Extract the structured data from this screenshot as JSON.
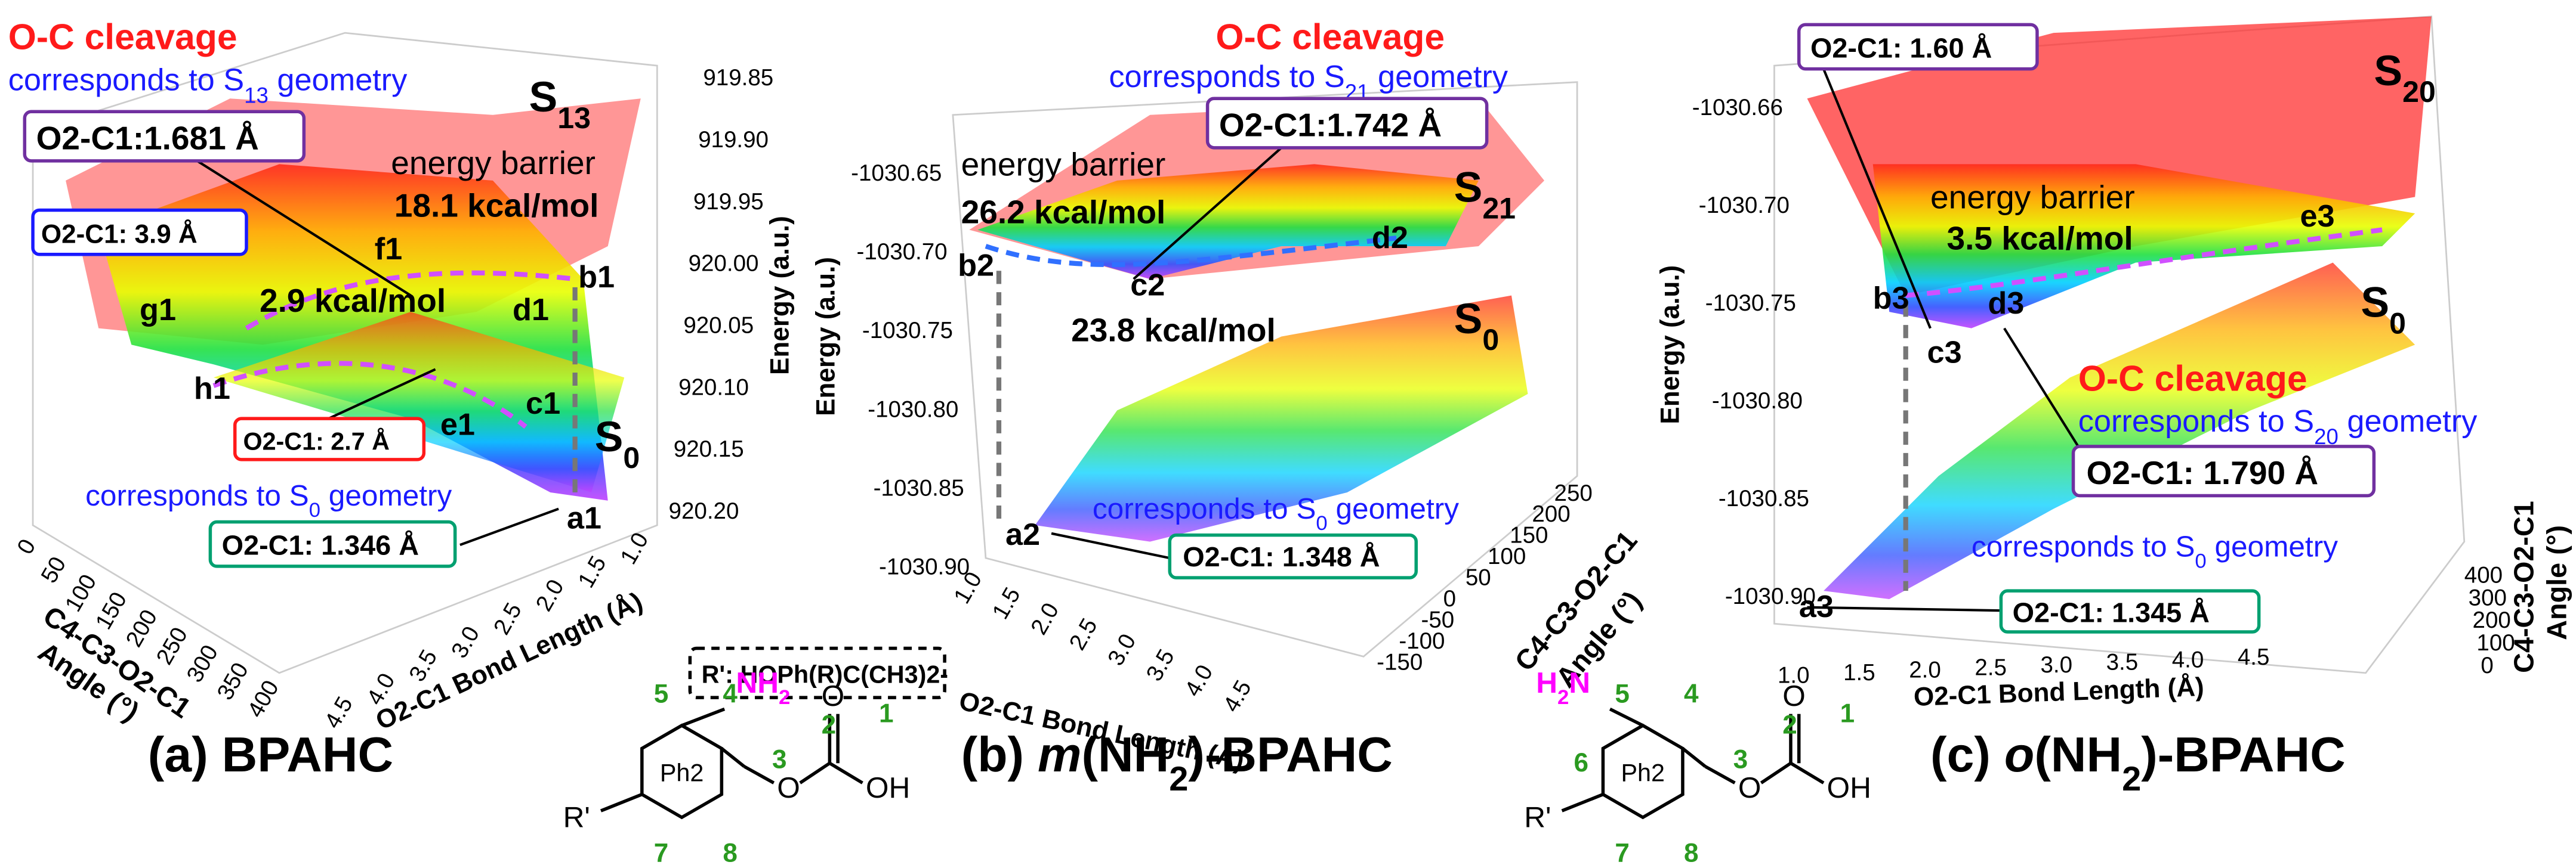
{
  "panels": [
    {
      "caption": "(a)  BPAHC",
      "cleavage": "O-C cleavage",
      "top_geometry": {
        "prefix": "corresponds to S",
        "sub": "13",
        "suffix": " geometry"
      },
      "state_upper": {
        "base": "S",
        "sub": "13"
      },
      "state_lower": {
        "base": "S",
        "sub": "0"
      },
      "bottom_geometry": {
        "prefix": "corresponds to S",
        "sub": "0",
        "suffix": " geometry"
      },
      "barrier_label": "energy barrier",
      "barriers": [
        "18.1 kcal/mol",
        "2.9 kcal/mol"
      ],
      "points": [
        "a1",
        "b1",
        "c1",
        "d1",
        "e1",
        "f1",
        "g1",
        "h1"
      ],
      "boxes": [
        "O2-C1:1.681 Å",
        "O2-C1: 3.9 Å",
        "O2-C1: 2.7 Å",
        "O2-C1: 1.346 Å"
      ],
      "energy_axis": {
        "label": "Energy (a.u.)",
        "ticks": [
          "919.85",
          "919.90",
          "919.95",
          "920.00",
          "920.05",
          "920.10",
          "920.15",
          "920.20"
        ]
      },
      "bond_axis": {
        "label": "O2-C1 Bond Length (Å)",
        "ticks": [
          "1.0",
          "1.5",
          "2.0",
          "2.5",
          "3.0",
          "3.5",
          "4.0",
          "4.5"
        ]
      },
      "angle_axis": {
        "label": [
          "C4-C3-O2-C1",
          "Angle (°)"
        ],
        "ticks": [
          "0",
          "50",
          "100",
          "150",
          "200",
          "250",
          "300",
          "350",
          "400"
        ]
      }
    },
    {
      "caption": {
        "prefix": "(b) ",
        "italic": "m",
        "middle": "(NH",
        "sub": "2",
        "suffix": ")-BPAHC"
      },
      "cleavage": "O-C cleavage",
      "top_geometry": {
        "prefix": "corresponds to S",
        "sub": "21",
        "suffix": " geometry"
      },
      "state_upper": {
        "base": "S",
        "sub": "21"
      },
      "state_lower": {
        "base": "S",
        "sub": "0"
      },
      "bottom_geometry": {
        "prefix": "corresponds to S",
        "sub": "0",
        "suffix": " geometry"
      },
      "barrier_label": "energy barrier",
      "barriers": [
        "26.2 kcal/mol",
        "23.8 kcal/mol"
      ],
      "points": [
        "a2",
        "b2",
        "c2",
        "d2"
      ],
      "boxes": [
        "O2-C1:1.742 Å",
        "O2-C1: 1.348 Å"
      ],
      "energy_axis": {
        "label": "Energy (a.u.)",
        "ticks": [
          "-1030.65",
          "-1030.70",
          "-1030.75",
          "-1030.80",
          "-1030.85",
          "-1030.90"
        ]
      },
      "bond_axis": {
        "label": "O2-C1 Bond Length (Å)",
        "ticks": [
          "1.0",
          "1.5",
          "2.0",
          "2.5",
          "3.0",
          "3.5",
          "4.0",
          "4.5"
        ]
      },
      "angle_axis": {
        "label": [
          "C4-C3-O2-C1",
          "Angle (°)"
        ],
        "ticks": [
          "250",
          "200",
          "150",
          "100",
          "50",
          "0",
          "-50",
          "-100",
          "-150"
        ]
      }
    },
    {
      "caption": {
        "prefix": "(c) ",
        "italic": "o",
        "middle": "(NH",
        "sub": "2",
        "suffix": ")-BPAHC"
      },
      "cleavage": "O-C cleavage",
      "top_geometry": {
        "prefix": "corresponds to S",
        "sub": "20",
        "suffix": " geometry"
      },
      "state_upper": {
        "base": "S",
        "sub": "20"
      },
      "state_lower": {
        "base": "S",
        "sub": "0"
      },
      "bottom_geometry": {
        "prefix": "corresponds to S",
        "sub": "0",
        "suffix": " geometry"
      },
      "barrier_label": "energy barrier",
      "barriers": [
        "3.5 kcal/mol"
      ],
      "points": [
        "a3",
        "b3",
        "c3",
        "d3",
        "e3"
      ],
      "boxes": [
        "O2-C1: 1.60 Å",
        "O2-C1: 1.790 Å",
        "O2-C1: 1.345 Å"
      ],
      "energy_axis": {
        "label": "Energy (a.u.)",
        "ticks": [
          "-1030.66",
          "-1030.70",
          "-1030.75",
          "-1030.80",
          "-1030.85",
          "-1030.90"
        ]
      },
      "bond_axis": {
        "label": "O2-C1 Bond Length (Å)",
        "ticks": [
          "1.0",
          "1.5",
          "2.0",
          "2.5",
          "3.0",
          "3.5",
          "4.0",
          "4.5"
        ]
      },
      "angle_axis": {
        "label": [
          "C4-C3-O2-C1",
          "Angle (°)"
        ],
        "ticks": [
          "400",
          "300",
          "200",
          "100",
          "0"
        ]
      }
    }
  ],
  "substituent_note": "R': HOPh(R)C(CH3)2-",
  "molecules": [
    {
      "substituent": {
        "base": "NH",
        "sub": "2"
      },
      "ring": "Ph2",
      "numbers": [
        "5",
        "4",
        "3",
        "2",
        "1",
        "7",
        "8"
      ],
      "atoms": [
        "O",
        "O",
        "OH",
        "R'"
      ]
    },
    {
      "substituent": {
        "base": "H",
        "sub": "2",
        "rest": "N"
      },
      "ring": "Ph2",
      "numbers": [
        "5",
        "4",
        "6",
        "3",
        "2",
        "1",
        "7",
        "8"
      ],
      "atoms": [
        "O",
        "O",
        "OH",
        "R'"
      ]
    }
  ]
}
